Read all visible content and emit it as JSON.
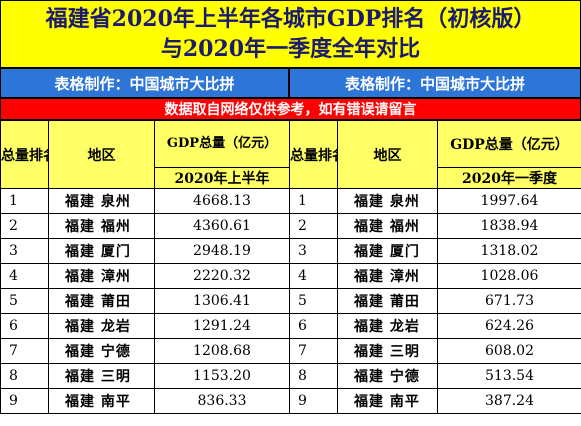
{
  "title": {
    "line1": "福建省2020年上半年各城市GDP排名（初核版）",
    "line2": "与2020年一季度全年对比"
  },
  "maker": {
    "left": "表格制作：中国城市大比拼",
    "right": "表格制作：中国城市大比拼"
  },
  "notice": "数据取自网络仅供参考，如有错误请留言",
  "left_table": {
    "header_rank": "总量排名",
    "header_region": "地区",
    "header_gdp": "GDP总量（亿元）",
    "header_period": "2020年上半年",
    "rows": [
      {
        "rank": "1",
        "region": "福建 泉州",
        "value": "4668.13"
      },
      {
        "rank": "2",
        "region": "福建 福州",
        "value": "4360.61"
      },
      {
        "rank": "3",
        "region": "福建 厦门",
        "value": "2948.19"
      },
      {
        "rank": "4",
        "region": "福建 漳州",
        "value": "2220.32"
      },
      {
        "rank": "5",
        "region": "福建 莆田",
        "value": "1306.41"
      },
      {
        "rank": "6",
        "region": "福建 龙岩",
        "value": "1291.24"
      },
      {
        "rank": "7",
        "region": "福建 宁德",
        "value": "1208.68"
      },
      {
        "rank": "8",
        "region": "福建 三明",
        "value": "1153.20"
      },
      {
        "rank": "9",
        "region": "福建 南平",
        "value": "836.33"
      }
    ]
  },
  "right_table": {
    "header_rank": "总量排名",
    "header_region": "地区",
    "header_gdp": "GDP总量（亿元）",
    "header_period": "2020年一季度",
    "rows": [
      {
        "rank": "1",
        "region": "福建 泉州",
        "value": "1997.64"
      },
      {
        "rank": "2",
        "region": "福建 福州",
        "value": "1838.94"
      },
      {
        "rank": "3",
        "region": "福建 厦门",
        "value": "1318.02"
      },
      {
        "rank": "4",
        "region": "福建 漳州",
        "value": "1028.06"
      },
      {
        "rank": "5",
        "region": "福建 莆田",
        "value": "671.73"
      },
      {
        "rank": "6",
        "region": "福建 龙岩",
        "value": "624.26"
      },
      {
        "rank": "7",
        "region": "福建 三明",
        "value": "608.02"
      },
      {
        "rank": "8",
        "region": "福建 宁德",
        "value": "513.54"
      },
      {
        "rank": "9",
        "region": "福建 南平",
        "value": "387.24"
      }
    ]
  },
  "colors": {
    "title_bg": "#ffff00",
    "title_text": "#1a1a6e",
    "maker_bg": "#2e75d8",
    "notice_bg": "#ff0000",
    "header_bg": "#ffff66",
    "rank_bg": "#dbeaff"
  }
}
